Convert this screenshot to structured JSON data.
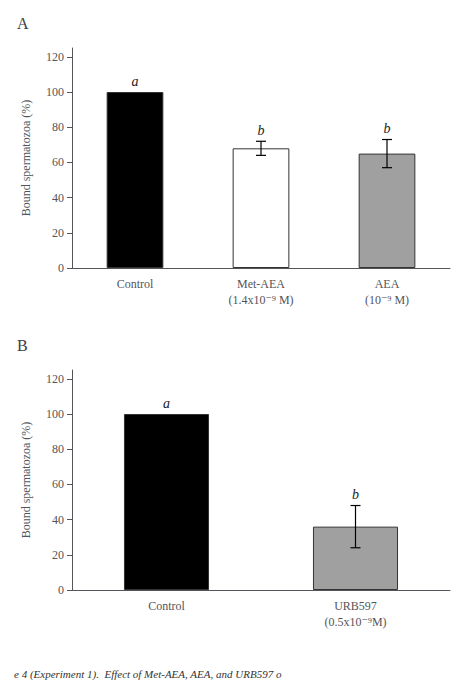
{
  "caption": "e 4 (Experiment 1).  Effect of Met-AEA, AEA, and URB597 o",
  "chart_data": [
    {
      "type": "bar",
      "title": "A",
      "categories": [
        "Control",
        "Met-AEA\n(1.4x10⁻⁹ M)",
        "AEA\n(10⁻⁹ M)"
      ],
      "values": [
        100,
        68,
        65
      ],
      "errors": [
        0,
        4,
        8
      ],
      "colors": [
        "#000000",
        "#ffffff",
        "#a0a0a0"
      ],
      "annotations": [
        "a",
        "b",
        "b"
      ],
      "ylabel": "Bound spermatozoa (%)",
      "ylim": [
        0,
        125
      ],
      "yticks": [
        0,
        20,
        40,
        60,
        80,
        100,
        120
      ],
      "grid": false
    },
    {
      "type": "bar",
      "title": "B",
      "categories": [
        "Control",
        "URB597\n(0.5x10⁻⁹M)"
      ],
      "values": [
        100,
        36
      ],
      "errors": [
        0,
        12
      ],
      "colors": [
        "#000000",
        "#a0a0a0"
      ],
      "annotations": [
        "a",
        "b"
      ],
      "ylabel": "Bound spermatozoa (%)",
      "ylim": [
        0,
        125
      ],
      "yticks": [
        0,
        20,
        40,
        60,
        80,
        100,
        120
      ],
      "grid": false
    }
  ]
}
